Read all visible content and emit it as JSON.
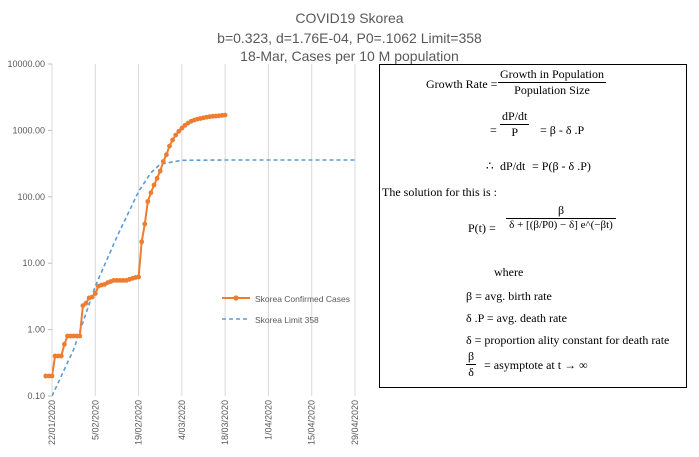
{
  "chart_title": {
    "line1": "COVID19 Skorea",
    "line2": "b=0.323, d=1.76E-04, P0=.1062 Limit=358",
    "line3": "18-Mar, Cases per 10 M population"
  },
  "formula": {
    "growth_rate_label": "Growth Rate =",
    "growth_num": "Growth in Population",
    "growth_den": "Population Size",
    "eq": "=",
    "dp": "dP",
    "dt": "dt",
    "p": "P",
    "rhs1": "= β - δ .P",
    "therefore": "∴",
    "rhs2": "= P(β - δ .P)",
    "solution_text": "The solution for this is :",
    "pt_label": "P(t) =",
    "beta": "β",
    "solution_den": "δ + [(β/P0) − δ] e^(−βt)",
    "where": "where",
    "def1": "β = avg. birth rate",
    "def2": "δ .P = avg. death rate",
    "def3": "δ = proportion ality constant  for death rate",
    "def4_num": "β",
    "def4_den": "δ",
    "def4_rest": "= asymptote at t → ∞"
  },
  "chart_data": {
    "type": "line",
    "title": "COVID19 Skorea",
    "subtitle": "b=0.323, d=1.76E-04, P0=.1062 Limit=358 | 18-Mar, Cases per 10 M population",
    "yscale": "log",
    "ylim": [
      0.1,
      10000
    ],
    "y_ticks": [
      "0.10",
      "1.00",
      "10.00",
      "100.00",
      "1000.00",
      "10000.00"
    ],
    "x_ticks": [
      "22/01/2020",
      "5/02/2020",
      "19/02/2020",
      "4/03/2020",
      "18/03/2020",
      "1/04/2020",
      "15/04/2020",
      "29/04/2020"
    ],
    "x_range": [
      "22/01/2020",
      "29/04/2020"
    ],
    "grid": "vertical gridlines",
    "legend_position": "right",
    "series": [
      {
        "name": "Skorea Confirmed Cases",
        "color": "#ED7D31",
        "marker": "circle",
        "x": [
          "20/01/2020",
          "21/01/2020",
          "22/01/2020",
          "23/01/2020",
          "24/01/2020",
          "25/01/2020",
          "26/01/2020",
          "27/01/2020",
          "28/01/2020",
          "29/01/2020",
          "30/01/2020",
          "31/01/2020",
          "01/02/2020",
          "02/02/2020",
          "03/02/2020",
          "04/02/2020",
          "05/02/2020",
          "06/02/2020",
          "07/02/2020",
          "08/02/2020",
          "09/02/2020",
          "10/02/2020",
          "11/02/2020",
          "12/02/2020",
          "13/02/2020",
          "14/02/2020",
          "15/02/2020",
          "16/02/2020",
          "17/02/2020",
          "18/02/2020",
          "19/02/2020",
          "20/02/2020",
          "21/02/2020",
          "22/02/2020",
          "23/02/2020",
          "24/02/2020",
          "25/02/2020",
          "26/02/2020",
          "27/02/2020",
          "28/02/2020",
          "29/02/2020",
          "01/03/2020",
          "02/03/2020",
          "03/03/2020",
          "04/03/2020",
          "05/03/2020",
          "06/03/2020",
          "07/03/2020",
          "08/03/2020",
          "09/03/2020",
          "10/03/2020",
          "11/03/2020",
          "12/03/2020",
          "13/03/2020",
          "14/03/2020",
          "15/03/2020",
          "16/03/2020",
          "17/03/2020",
          "18/03/2020"
        ],
        "y": [
          0.2,
          0.2,
          0.2,
          0.4,
          0.4,
          0.4,
          0.6,
          0.8,
          0.8,
          0.8,
          0.8,
          0.8,
          2.3,
          2.5,
          3.0,
          3.1,
          3.5,
          4.5,
          4.7,
          4.8,
          5.1,
          5.3,
          5.5,
          5.5,
          5.5,
          5.5,
          5.5,
          5.7,
          5.9,
          6.1,
          6.2,
          21,
          39,
          85,
          115,
          150,
          190,
          245,
          340,
          430,
          580,
          720,
          850,
          970,
          1080,
          1190,
          1290,
          1370,
          1430,
          1480,
          1510,
          1550,
          1580,
          1610,
          1630,
          1650,
          1660,
          1680,
          1700
        ]
      },
      {
        "name": "Skorea Limit 358",
        "color": "#5B9BD5",
        "style": "dashed",
        "x": [
          "22/01/2020",
          "29/01/2020",
          "05/02/2020",
          "12/02/2020",
          "19/02/2020",
          "23/02/2020",
          "26/02/2020",
          "04/03/2020",
          "18/03/2020",
          "01/04/2020",
          "15/04/2020",
          "29/04/2020"
        ],
        "y": [
          0.1,
          0.5,
          4.5,
          25,
          120,
          230,
          310,
          355,
          358,
          358,
          358,
          358
        ]
      }
    ]
  }
}
